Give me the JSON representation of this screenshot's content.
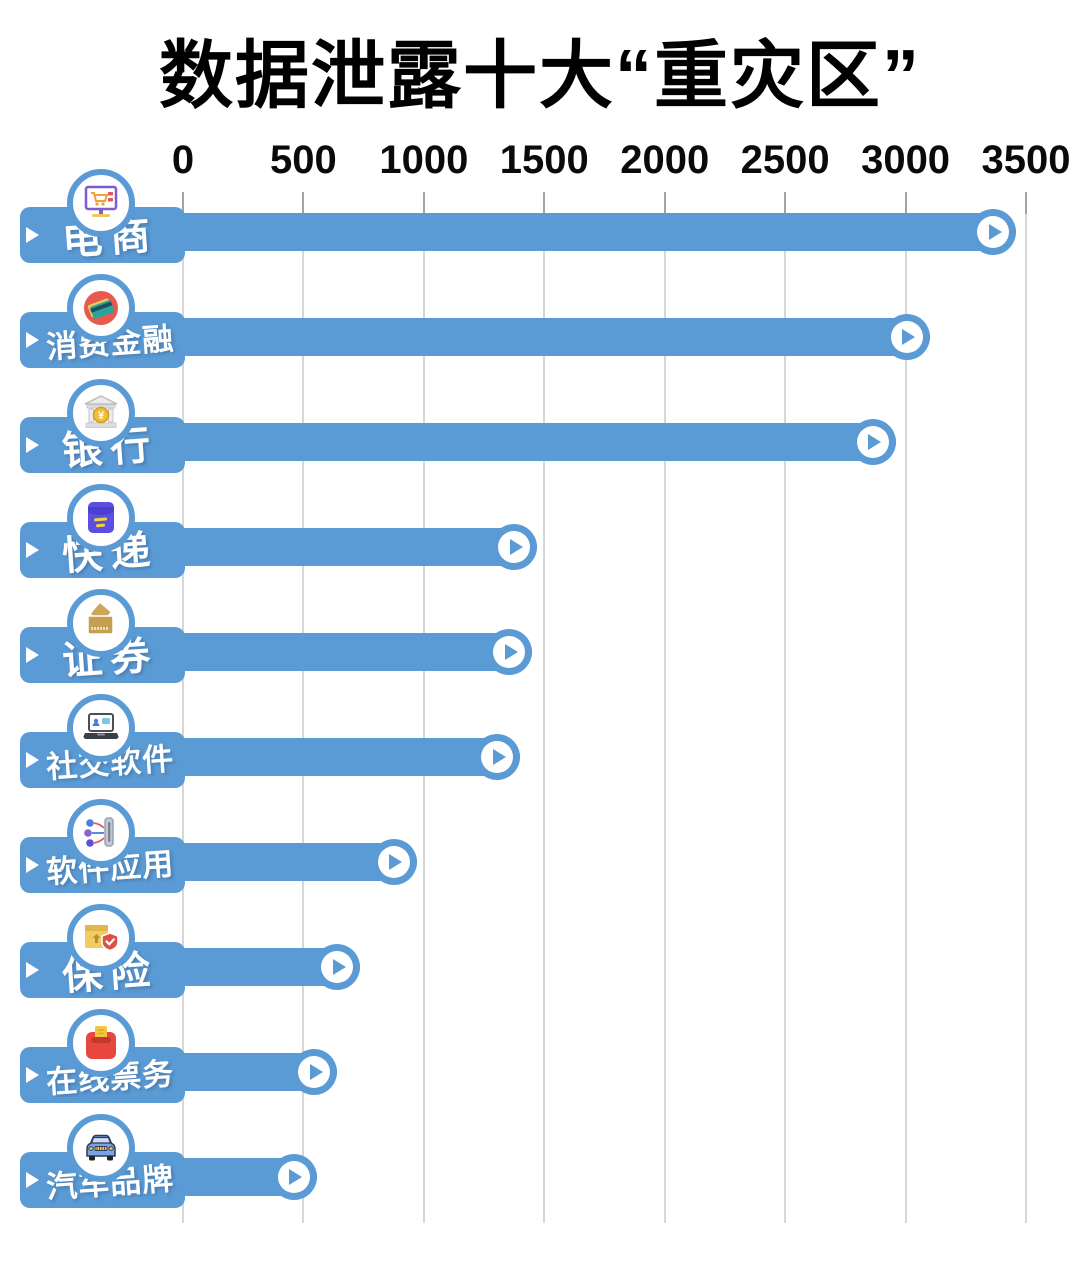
{
  "title": "数据泄露十大“重灾区”",
  "axis": {
    "tick_labels": [
      "0",
      "500",
      "1000",
      "1500",
      "2000",
      "2500",
      "3000",
      "3500"
    ]
  },
  "chart_data": {
    "type": "bar",
    "orientation": "horizontal",
    "title": "数据泄露十大“重灾区”",
    "categories": [
      "电商",
      "消费金融",
      "银行",
      "快递",
      "证券",
      "社交软件",
      "软件应用",
      "保险",
      "在线票务",
      "汽车品牌"
    ],
    "values": [
      3460,
      3100,
      2960,
      1470,
      1450,
      1400,
      970,
      735,
      640,
      555
    ],
    "xlim": [
      0,
      3500
    ],
    "x_ticks": [
      0,
      500,
      1000,
      1500,
      2000,
      2500,
      3000,
      3500
    ],
    "grid": true,
    "legend": false,
    "xlabel": "",
    "ylabel": "",
    "bar_color": "#5b9bd5"
  },
  "rows": [
    {
      "icon": "ecommerce"
    },
    {
      "icon": "consumer-finance"
    },
    {
      "icon": "bank"
    },
    {
      "icon": "express-delivery"
    },
    {
      "icon": "securities"
    },
    {
      "icon": "social-software"
    },
    {
      "icon": "software-app"
    },
    {
      "icon": "insurance"
    },
    {
      "icon": "online-ticketing"
    },
    {
      "icon": "car-brand"
    }
  ],
  "colors": {
    "bar": "#5b9bd5",
    "gridline": "#d7d7d7",
    "tick": "#a3a3a3",
    "title_text": "#000000",
    "label_text": "#ffffff"
  }
}
